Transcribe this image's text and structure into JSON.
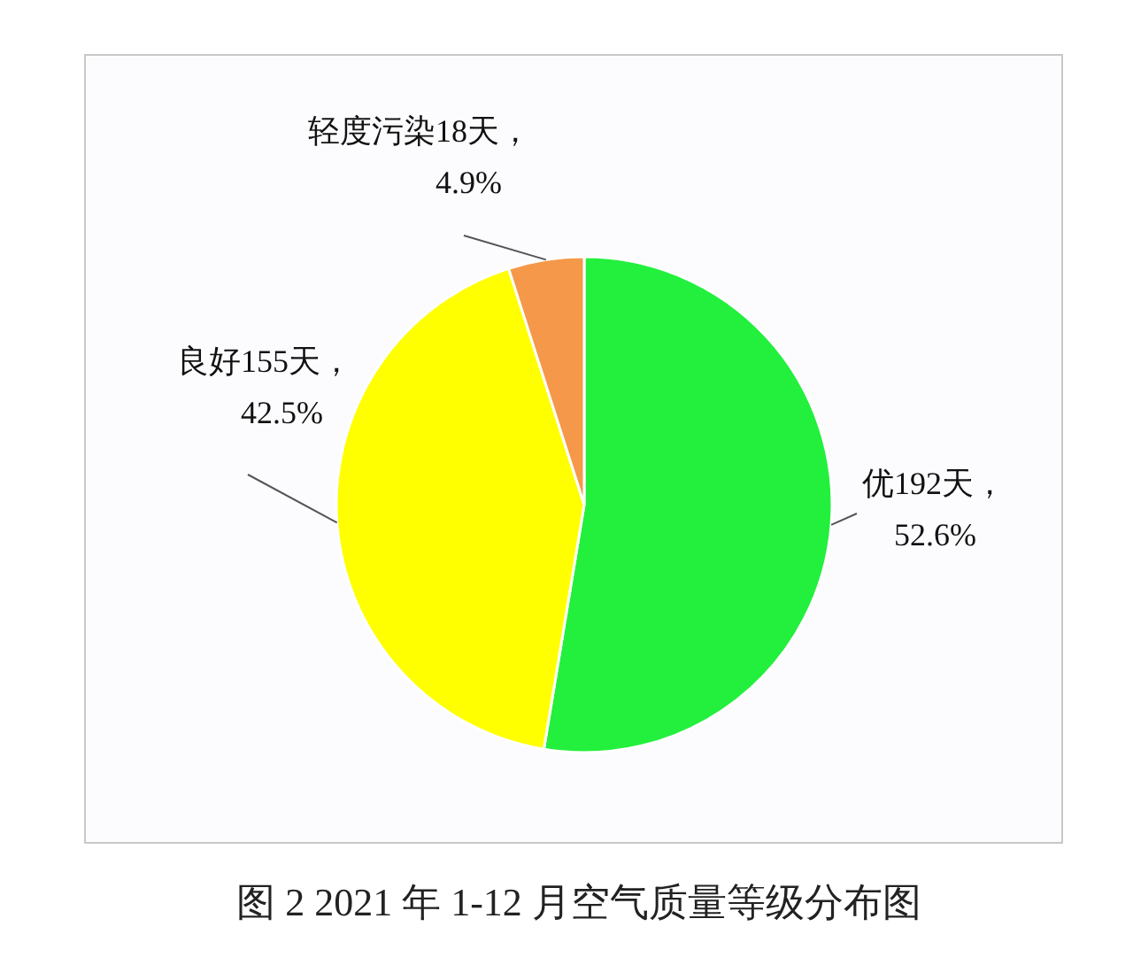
{
  "chart_data": {
    "type": "pie",
    "title": "图 2  2021 年 1-12 月空气质量等级分布图",
    "categories": [
      "优",
      "良好",
      "轻度污染"
    ],
    "values": [
      192,
      155,
      18
    ],
    "colors": [
      "#22f03c",
      "#ffff00",
      "#f5984a"
    ],
    "value_labels": [
      "192天，\n52.6%",
      "155天，\n42.5%",
      "18天，\n4.9%"
    ]
  }
}
